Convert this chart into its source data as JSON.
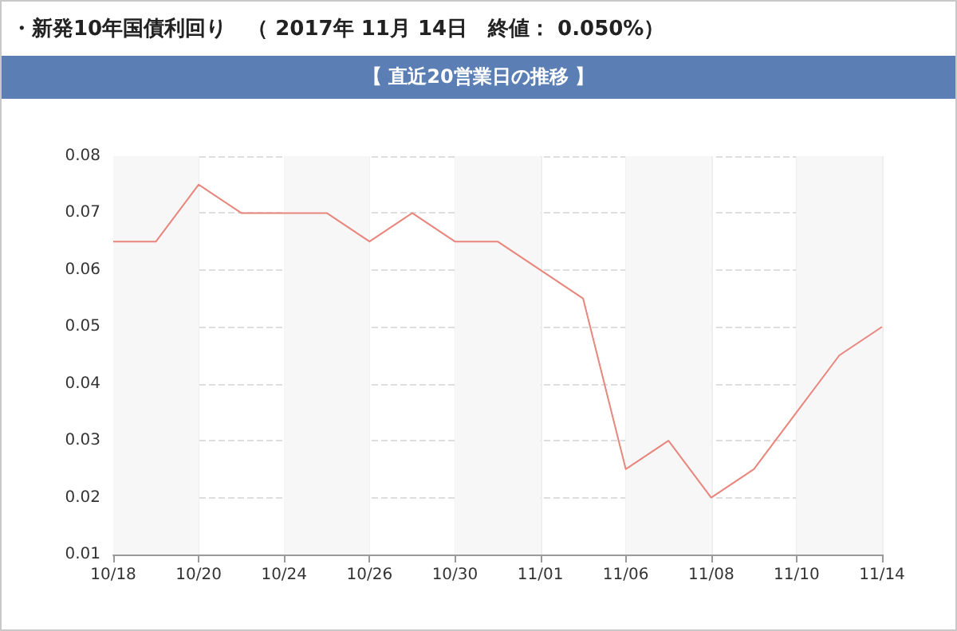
{
  "chart_data": {
    "type": "line",
    "title": "・新発10年国債利回り　（ 2017年 11月 14日　終値： 0.050%）",
    "subtitle": "【 直近20営業日の推移 】",
    "categories": [
      "10/18",
      null,
      "10/20",
      null,
      "10/24",
      null,
      "10/26",
      null,
      "10/30",
      null,
      "11/01",
      null,
      "11/06",
      null,
      "11/08",
      null,
      "11/10",
      null,
      "11/14"
    ],
    "series": [
      {
        "color": "#e8857c",
        "values": [
          0.065,
          0.065,
          0.075,
          0.07,
          0.07,
          0.07,
          0.065,
          0.07,
          0.065,
          0.065,
          0.06,
          0.055,
          0.025,
          0.03,
          0.02,
          0.025,
          0.035,
          0.045,
          0.05
        ]
      }
    ],
    "ylim": [
      0.01,
      0.08
    ],
    "yticks": [
      0.01,
      0.02,
      0.03,
      0.04,
      0.05,
      0.06,
      0.07,
      0.08
    ],
    "grid": true,
    "marker": "none",
    "line_style": "solid",
    "bands": [
      {
        "axis": "x",
        "from": "10/18",
        "to": "10/20",
        "color": "#f7f7f7"
      },
      {
        "axis": "x",
        "from": "10/24",
        "to": "10/26",
        "color": "#f7f7f7"
      },
      {
        "axis": "x",
        "from": "10/30",
        "to": "11/01",
        "color": "#f7f7f7"
      },
      {
        "axis": "x",
        "from": "11/06",
        "to": "11/08",
        "color": "#f7f7f7"
      },
      {
        "axis": "x",
        "from": "11/10",
        "to": "11/14",
        "color": "#f7f7f7"
      }
    ]
  }
}
